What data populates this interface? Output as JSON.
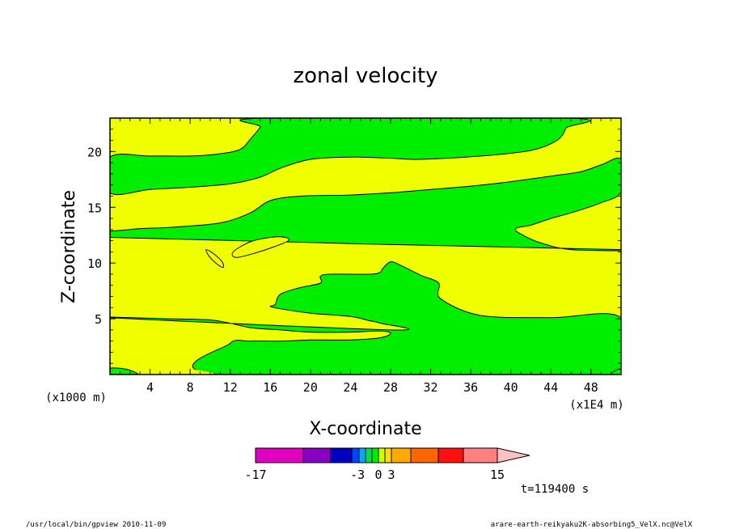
{
  "chart_data": {
    "type": "heatmap",
    "subtype": "filled-contour",
    "title": "zonal velocity",
    "xlabel": "X-coordinate",
    "ylabel": "Z-coordinate",
    "x_unit_label": "(x1E4 m)",
    "y_unit_label": "(x1000 m)",
    "xlim": [
      0,
      51
    ],
    "ylim": [
      0,
      23
    ],
    "x_ticks": [
      4,
      8,
      12,
      16,
      20,
      24,
      28,
      32,
      36,
      40,
      44,
      48
    ],
    "y_ticks": [
      5,
      10,
      15,
      20
    ],
    "background_level_color": "#f0ff00",
    "regions": [
      {
        "name": "green",
        "color": "#00ee00",
        "range": [
          -3,
          0
        ],
        "outline": [
          [
            0,
            5.1
          ],
          [
            6,
            5.0
          ],
          [
            10,
            4.9
          ],
          [
            12,
            4.6
          ],
          [
            14,
            4.2
          ],
          [
            17,
            4.0
          ],
          [
            20,
            3.8
          ],
          [
            24,
            3.8
          ],
          [
            27,
            3.9
          ],
          [
            28,
            3.7
          ],
          [
            27,
            3.3
          ],
          [
            24,
            3.1
          ],
          [
            20,
            3.1
          ],
          [
            17,
            3.0
          ],
          [
            14,
            3.0
          ],
          [
            12,
            2.8
          ],
          [
            11,
            0
          ],
          [
            51,
            0
          ],
          [
            51,
            5.1
          ],
          [
            44,
            5.1
          ],
          [
            37,
            5.3
          ],
          [
            33,
            6.8
          ],
          [
            32.8,
            8.2
          ],
          [
            31,
            8.9
          ],
          [
            29,
            9.8
          ],
          [
            28,
            10.1
          ],
          [
            27.2,
            9.5
          ],
          [
            27,
            9.2
          ],
          [
            26,
            9.0
          ],
          [
            22,
            9.0
          ],
          [
            21,
            8.8
          ],
          [
            21,
            8.2
          ],
          [
            19,
            7.8
          ],
          [
            17,
            7.2
          ],
          [
            16.5,
            6.3
          ],
          [
            16,
            6.1
          ],
          [
            17,
            5.9
          ],
          [
            20,
            5.5
          ],
          [
            24,
            5.2
          ],
          [
            26,
            4.8
          ],
          [
            27,
            4.6
          ],
          [
            28,
            4.0
          ]
        ]
      },
      {
        "name": "green-band-mid",
        "color": "#00ee00",
        "range": [
          -3,
          0
        ],
        "outline": [
          [
            0,
            12.3
          ],
          [
            2,
            13.0
          ],
          [
            6,
            13.2
          ],
          [
            11,
            13.6
          ],
          [
            14,
            14.5
          ],
          [
            16,
            15.6
          ],
          [
            19,
            16.0
          ],
          [
            24,
            16.1
          ],
          [
            28,
            16.3
          ],
          [
            32,
            16.6
          ],
          [
            36,
            16.9
          ],
          [
            40,
            17.3
          ],
          [
            44,
            17.8
          ],
          [
            47,
            18.2
          ],
          [
            49,
            18.8
          ],
          [
            51,
            19.3
          ],
          [
            51,
            16.4
          ],
          [
            49,
            15.4
          ],
          [
            46,
            14.5
          ],
          [
            44,
            14.0
          ],
          [
            42,
            13.4
          ],
          [
            40.5,
            13.1
          ],
          [
            41,
            12.6
          ],
          [
            43,
            11.8
          ],
          [
            46,
            11.2
          ],
          [
            51,
            11.2
          ]
        ]
      },
      {
        "name": "green-band-top",
        "color": "#00ee00",
        "range": [
          -3,
          0
        ],
        "outline": [
          [
            0,
            19.5
          ],
          [
            4,
            19.6
          ],
          [
            8,
            19.6
          ],
          [
            11,
            19.8
          ],
          [
            13,
            20.2
          ],
          [
            14,
            21.1
          ],
          [
            15,
            22.2
          ],
          [
            15.3,
            23
          ],
          [
            45.7,
            23
          ],
          [
            45.5,
            22.1
          ],
          [
            44.6,
            21.0
          ],
          [
            42,
            20.1
          ],
          [
            37,
            19.6
          ],
          [
            31,
            19.3
          ],
          [
            28,
            19.4
          ],
          [
            24,
            19.5
          ],
          [
            20,
            19.3
          ],
          [
            17,
            18.5
          ],
          [
            15,
            17.7
          ],
          [
            12,
            17.1
          ],
          [
            8,
            16.8
          ],
          [
            4,
            16.6
          ],
          [
            0,
            16.3
          ]
        ]
      }
    ],
    "colorbar": {
      "type": "palette",
      "tick_labels": [
        "-17",
        "-3",
        "0",
        "3",
        "15"
      ],
      "segments": [
        {
          "range": [
            -17,
            -11
          ],
          "color": "#e000c0"
        },
        {
          "range": [
            -11,
            -7
          ],
          "color": "#8800c0"
        },
        {
          "range": [
            -7,
            -5
          ],
          "color": "#0000c0"
        },
        {
          "range": [
            -5,
            -4
          ],
          "color": "#0044ff"
        },
        {
          "range": [
            -4,
            -3
          ],
          "color": "#00aaff"
        },
        {
          "range": [
            -3,
            -1.5
          ],
          "color": "#00dd55"
        },
        {
          "range": [
            -1.5,
            0
          ],
          "color": "#00ee00"
        },
        {
          "range": [
            0,
            1.5
          ],
          "color": "#ccff00"
        },
        {
          "range": [
            1.5,
            3
          ],
          "color": "#ffdd00"
        },
        {
          "range": [
            3,
            5
          ],
          "color": "#ffaa00"
        },
        {
          "range": [
            5,
            8
          ],
          "color": "#ff6600"
        },
        {
          "range": [
            8,
            11
          ],
          "color": "#ff1010"
        },
        {
          "range": [
            11,
            15
          ],
          "color": "#ff8080"
        },
        {
          "range": [
            15,
            18
          ],
          "color": "#ffc0c0"
        }
      ]
    },
    "time_label": "t=119400 s"
  },
  "footer": {
    "left": "/usr/local/bin/gpview  2010-11-09",
    "right": "arare-earth-reikyaku2K-absorbing5_VelX.nc@VelX"
  }
}
